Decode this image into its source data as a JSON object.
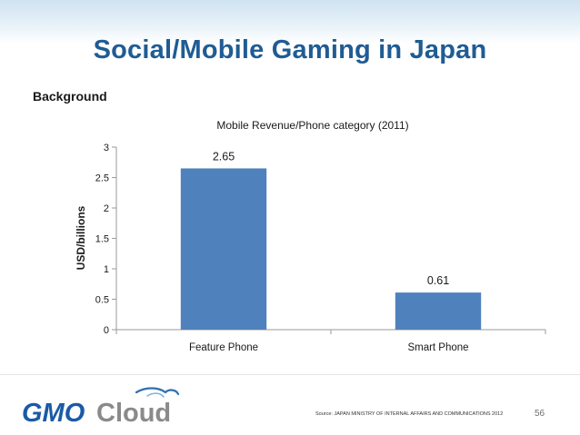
{
  "slide": {
    "title": "Social/Mobile Gaming in Japan",
    "subheading": "Background",
    "source": "Source: JAPAN MINISTRY OF INTERNAL AFFAIRS AND COMMUNICATIONS 2012",
    "page_number": "56",
    "logo_text": "GMO Cloud"
  },
  "colors": {
    "title": "#1f5c94",
    "bar": "#4f81bd",
    "logo_blue": "#1a5aa6",
    "logo_gray": "#8a8a8a"
  },
  "chart_data": {
    "type": "bar",
    "title": "Mobile Revenue/Phone category (2011)",
    "categories": [
      "Feature Phone",
      "Smart Phone"
    ],
    "values": [
      2.65,
      0.61
    ],
    "data_labels": [
      "2.65",
      "0.61"
    ],
    "xlabel": "",
    "ylabel": "USD/billions",
    "ylim": [
      0,
      3
    ],
    "yticks": [
      "0",
      "0.5",
      "1",
      "1.5",
      "2",
      "2.5",
      "3"
    ],
    "grid": false,
    "legend": "none"
  }
}
